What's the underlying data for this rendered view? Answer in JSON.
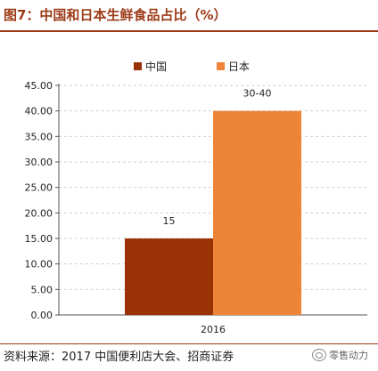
{
  "header": {
    "title": "图7：中国和日本生鲜食品占比（%）"
  },
  "footer": {
    "source": "资料来源：2017 中国便利店大会、招商证券",
    "watermark": "零售动力"
  },
  "colors": {
    "china": "#9b3206",
    "japan": "#ee8437",
    "accent": "#9c3a17",
    "grid": "#cfcfcf"
  },
  "chart_data": {
    "type": "bar",
    "categories": [
      "2016"
    ],
    "series": [
      {
        "name": "中国",
        "values": [
          15
        ],
        "label": "15",
        "color": "#9b3206"
      },
      {
        "name": "日本",
        "values": [
          40
        ],
        "label": "30-40",
        "color": "#ee8437"
      }
    ],
    "title": "",
    "xlabel": "",
    "ylabel": "",
    "ylim": [
      0,
      45
    ],
    "yticks": [
      "0.00",
      "5.00",
      "10.00",
      "15.00",
      "20.00",
      "25.00",
      "30.00",
      "35.00",
      "40.00",
      "45.00"
    ],
    "grid": true,
    "legend": "top-center"
  }
}
